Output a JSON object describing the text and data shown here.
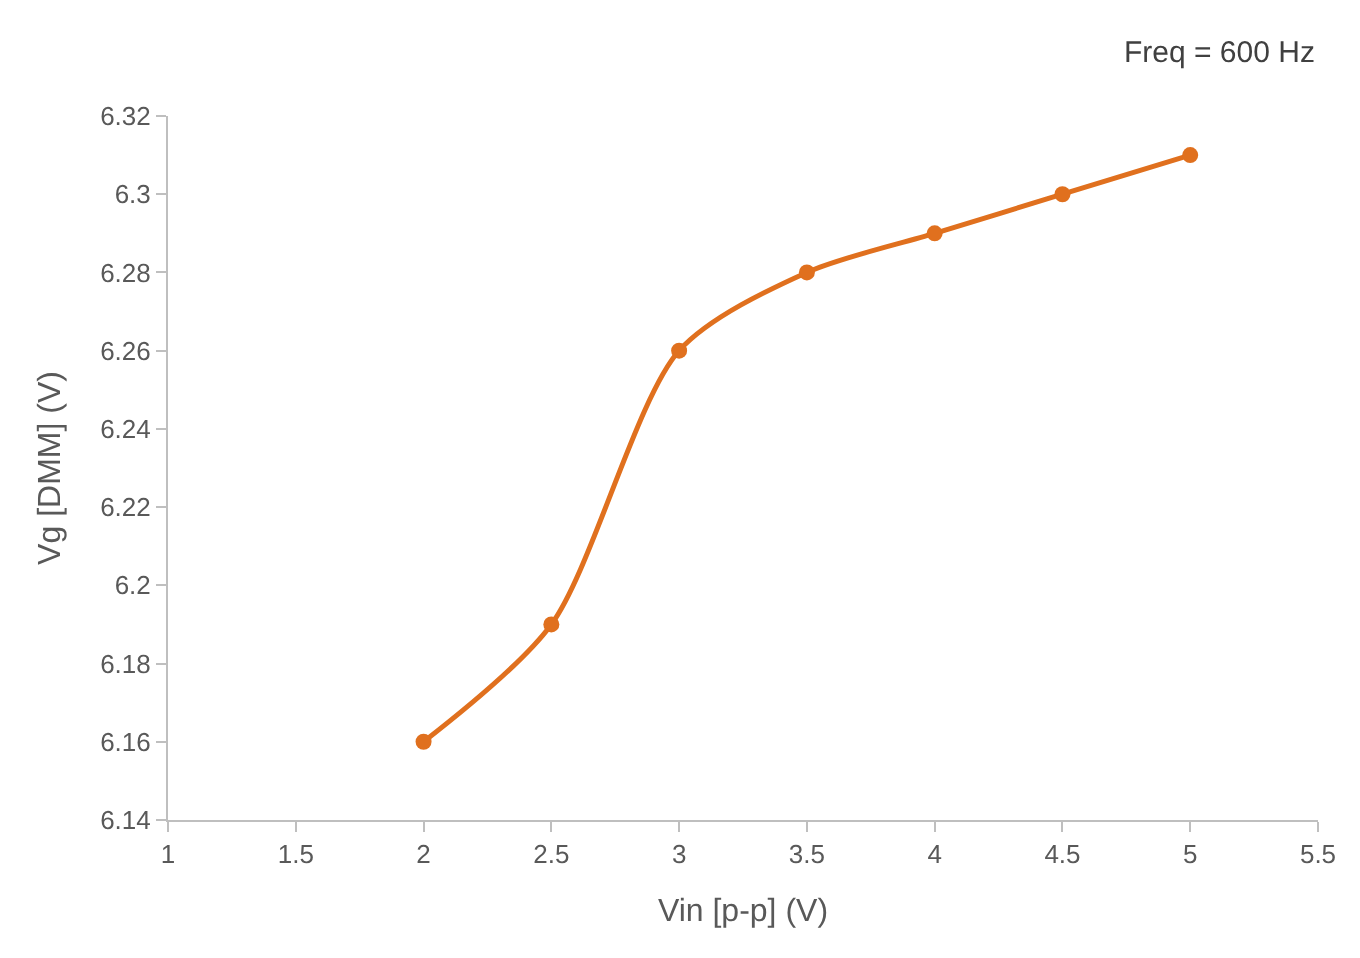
{
  "chart_data": {
    "type": "line",
    "xlabel": "Vin [p-p] (V)",
    "ylabel": "Vg [DMM] (V)",
    "annotations": [
      "Freq = 600 Hz"
    ],
    "x": [
      2,
      2.5,
      3,
      3.5,
      4,
      4.5,
      5
    ],
    "series": [
      {
        "color": "#e0701e",
        "values": [
          6.16,
          6.19,
          6.26,
          6.28,
          6.29,
          6.3,
          6.31
        ]
      }
    ],
    "xlim": [
      1,
      5.5
    ],
    "xticks": [
      1,
      1.5,
      2,
      2.5,
      3,
      3.5,
      4,
      4.5,
      5,
      5.5
    ],
    "ylim": [
      6.14,
      6.32
    ],
    "yticks": [
      6.14,
      6.16,
      6.18,
      6.2,
      6.22,
      6.24,
      6.26,
      6.28,
      6.3,
      6.32
    ],
    "marker": "circle",
    "line_style": "solid"
  }
}
